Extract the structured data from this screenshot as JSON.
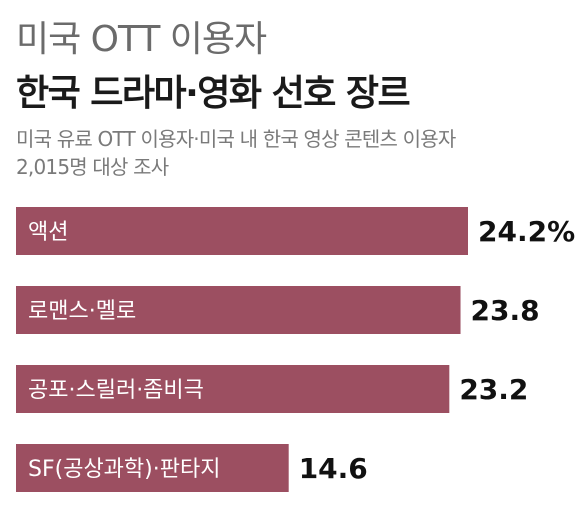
{
  "header": {
    "title_line1": "미국 OTT 이용자",
    "title_line2": "한국 드라마·영화 선호 장르",
    "subtitle_line1": "미국 유료 OTT 이용자·미국 내 한국 영상 콘텐츠 이용자",
    "subtitle_line2": "2,015명 대상 조사"
  },
  "chart_data": {
    "type": "bar",
    "orientation": "horizontal",
    "categories": [
      "액션",
      "로맨스·멜로",
      "공포·스릴러·좀비극",
      "SF(공상과학)·판타지"
    ],
    "values": [
      24.2,
      23.8,
      23.2,
      14.6
    ],
    "value_labels": [
      "24.2%",
      "23.8",
      "23.2",
      "14.6"
    ],
    "unit": "%",
    "bar_color": "#9c4f61",
    "grid": false
  }
}
